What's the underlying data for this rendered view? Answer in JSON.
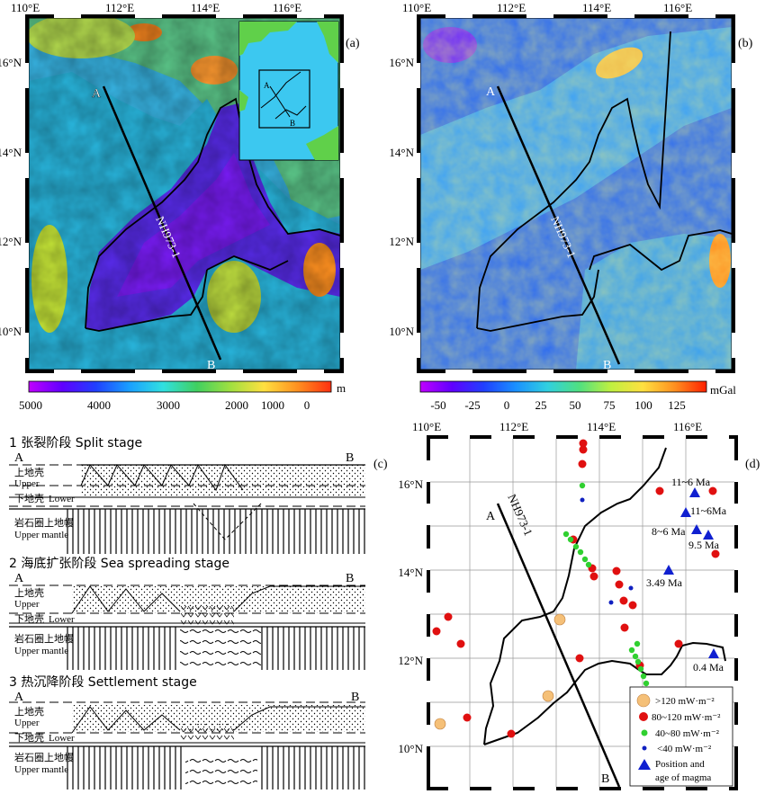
{
  "panel_a": {
    "label": "(a)",
    "x_ticks": [
      "110°E",
      "112°E",
      "114°E",
      "116°E"
    ],
    "y_ticks": [
      "16°N",
      "14°N",
      "12°N",
      "10°N"
    ],
    "profile_line": "NH973-1",
    "point_a": "A",
    "point_b": "B",
    "inset_a": "A",
    "inset_b": "B",
    "colorbar_unit": "m",
    "colorbar_ticks": [
      "5000",
      "4000",
      "3000",
      "2000",
      "1000",
      "0"
    ],
    "colorbar_colors": [
      "#c000ff",
      "#6000ff",
      "#2040ff",
      "#1aa0ff",
      "#30e0e0",
      "#40d060",
      "#a0e040",
      "#ffe040",
      "#ff9020",
      "#ff3010"
    ]
  },
  "panel_b": {
    "label": "(b)",
    "x_ticks": [
      "110°E",
      "112°E",
      "114°E",
      "116°E"
    ],
    "y_ticks": [
      "16°N",
      "14°N",
      "12°N",
      "10°N"
    ],
    "profile_line": "NH973-1",
    "point_a": "A",
    "point_b": "B",
    "colorbar_unit": "mGal",
    "colorbar_ticks": [
      "-50",
      "-25",
      "0",
      "25",
      "50",
      "75",
      "100",
      "125"
    ],
    "colorbar_colors": [
      "#c000ff",
      "#6000ff",
      "#2040ff",
      "#1a90ff",
      "#30d0e0",
      "#50e080",
      "#c0f040",
      "#ffe040",
      "#ff9020",
      "#ff2000"
    ]
  },
  "panel_c": {
    "label": "(c)",
    "stage1_title": "1 张裂阶段 Split stage",
    "stage2_title": "2 海底扩张阶段 Sea spreading stage",
    "stage3_title": "3 热沉降阶段 Settlement stage",
    "point_a": "A",
    "point_b": "B",
    "upper_crust_cn": "上地壳",
    "upper_crust_en": "Upper",
    "lower_crust_cn": "下地壳",
    "lower_crust_en": "Lower",
    "mantle_cn": "岩石圈上地幔",
    "mantle_en": "Upper mantle"
  },
  "panel_d": {
    "label": "(d)",
    "x_ticks": [
      "110°E",
      "112°E",
      "114°E",
      "116°E"
    ],
    "y_ticks": [
      "16°N",
      "14°N",
      "12°N",
      "10°N"
    ],
    "profile_line": "NH973-1",
    "point_a": "A",
    "point_b": "B",
    "age_labels": [
      "11~6 Ma",
      "11~6Ma",
      "8~6 Ma",
      "9.5 Ma",
      "3.49 Ma",
      "0.4 Ma"
    ],
    "legend": [
      {
        "label": ">120 mW·m⁻²",
        "color": "#f5c078",
        "symbol": "large-circle"
      },
      {
        "label": "80~120 mW·m⁻²",
        "color": "#e01010",
        "symbol": "circle"
      },
      {
        "label": "40~80 mW·m⁻²",
        "color": "#30d030",
        "symbol": "small-circle"
      },
      {
        "label": "<40 mW·m⁻²",
        "color": "#1020c0",
        "symbol": "dot"
      },
      {
        "label": "Position and",
        "color": "#1020d0",
        "symbol": "triangle"
      },
      {
        "label": "age of magma",
        "color": "",
        "symbol": "none"
      }
    ]
  }
}
